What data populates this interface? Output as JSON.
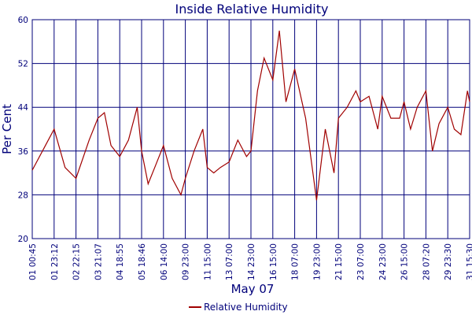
{
  "chart_data": {
    "type": "line",
    "title": "Inside Relative Humidity",
    "xlabel": "May 07",
    "ylabel": "Per Cent",
    "ylim": [
      20,
      60
    ],
    "yticks": [
      20,
      28,
      36,
      44,
      52,
      60
    ],
    "xticks": [
      "01 00:45",
      "01 23:12",
      "02 22:15",
      "03 21:07",
      "04 18:55",
      "05 18:46",
      "06 14:00",
      "09 23:00",
      "11 15:00",
      "13 07:00",
      "14 23:00",
      "16 15:00",
      "18 07:00",
      "19 23:00",
      "21 15:00",
      "23 07:00",
      "24 23:00",
      "26 15:00",
      "28 07:20",
      "29 23:30",
      "31 15:30"
    ],
    "grid": true,
    "legend": "bottom",
    "colors": {
      "series": "#a00000",
      "axis": "#00007a"
    },
    "series": [
      {
        "name": "Relative Humidity",
        "x_ticks_float": [
          0,
          0.6,
          1,
          1.5,
          2,
          2.6,
          3,
          3.3,
          3.6,
          4,
          4.4,
          4.8,
          5,
          5.3,
          5.6,
          6,
          6.4,
          6.8,
          7,
          7.4,
          7.8,
          8,
          8.3,
          8.6,
          9,
          9.4,
          9.8,
          10,
          10.3,
          10.6,
          11,
          11.3,
          11.6,
          12,
          12.5,
          13,
          13.4,
          13.8,
          14,
          14.4,
          14.8,
          15,
          15.4,
          15.8,
          16,
          16.4,
          16.8,
          17,
          17.3,
          17.6,
          18,
          18.3,
          18.6,
          19,
          19.3,
          19.6,
          19.9,
          20
        ],
        "values": [
          32.5,
          37,
          40,
          33,
          31,
          38,
          42,
          43,
          37,
          35,
          38,
          44,
          36,
          30,
          33,
          37,
          31,
          28,
          31,
          36,
          40,
          33,
          32,
          33,
          34,
          38,
          35,
          36,
          47,
          53,
          49,
          58,
          45,
          51,
          42,
          27,
          40,
          32,
          42,
          44,
          47,
          45,
          46,
          40,
          46,
          42,
          42,
          45,
          40,
          44,
          47,
          36,
          41,
          44,
          40,
          39,
          47,
          45
        ],
        "note": "approximate trace of the plotted line"
      }
    ]
  }
}
